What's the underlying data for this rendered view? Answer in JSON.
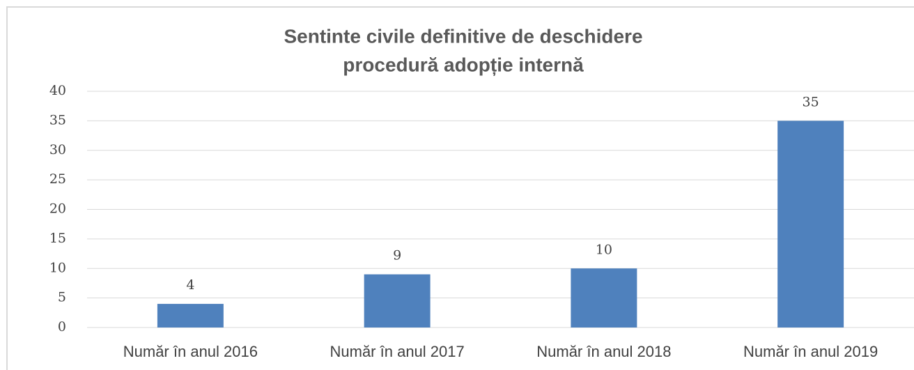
{
  "chart_data": {
    "type": "bar",
    "title": [
      "Sentinte civile definitive de deschidere",
      "procedură adopție internă"
    ],
    "categories": [
      "Număr în anul 2016",
      "Număr în anul 2017",
      "Număr în anul 2018",
      "Număr în anul 2019"
    ],
    "values": [
      4,
      9,
      10,
      35
    ],
    "color": "#4f81bd",
    "ylim": [
      0,
      40
    ],
    "yticks": [
      0,
      5,
      10,
      15,
      20,
      25,
      30,
      35,
      40
    ],
    "grid": true
  }
}
